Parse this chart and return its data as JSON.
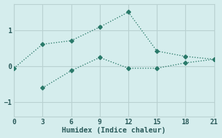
{
  "title": "",
  "xlabel": "Humidex (Indice chaleur)",
  "background_color": "#d5eded",
  "grid_color": "#b8d0d0",
  "line_color": "#2a7a6a",
  "line1_x": [
    0,
    3,
    6,
    9,
    12,
    15,
    18,
    21
  ],
  "line1_y": [
    -0.05,
    0.62,
    0.72,
    1.1,
    1.52,
    0.43,
    0.28,
    0.2
  ],
  "line2_x": [
    3,
    6,
    9,
    12,
    15,
    18,
    21
  ],
  "line2_y": [
    -0.6,
    -0.12,
    0.25,
    -0.05,
    -0.05,
    0.1,
    0.2
  ],
  "xlim": [
    0,
    21
  ],
  "ylim": [
    -1.4,
    1.75
  ],
  "xticks": [
    0,
    3,
    6,
    9,
    12,
    15,
    18,
    21
  ],
  "yticks": [
    -1,
    0,
    1
  ],
  "markersize": 3,
  "linewidth": 1.0
}
